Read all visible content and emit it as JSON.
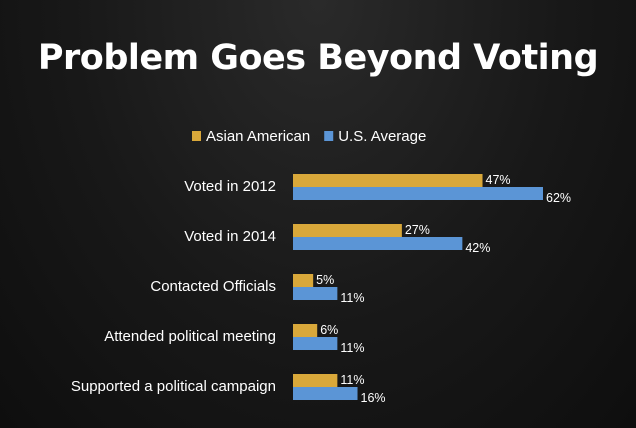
{
  "chart_data": {
    "type": "bar",
    "orientation": "horizontal",
    "title": "Problem Goes Beyond Voting",
    "categories": [
      "Voted in 2012",
      "Voted in 2014",
      "Contacted Officials",
      "Attended political meeting",
      "Supported a political campaign"
    ],
    "series": [
      {
        "name": "Asian American",
        "values": [
          47,
          27,
          5,
          6,
          11
        ],
        "color": "#d9a83a"
      },
      {
        "name": "U.S. Average",
        "values": [
          62,
          42,
          11,
          11,
          16
        ],
        "color": "#5b95d6"
      }
    ],
    "value_suffix": "%",
    "legend_position": "top",
    "grid": false,
    "xlim": [
      0,
      100
    ]
  }
}
